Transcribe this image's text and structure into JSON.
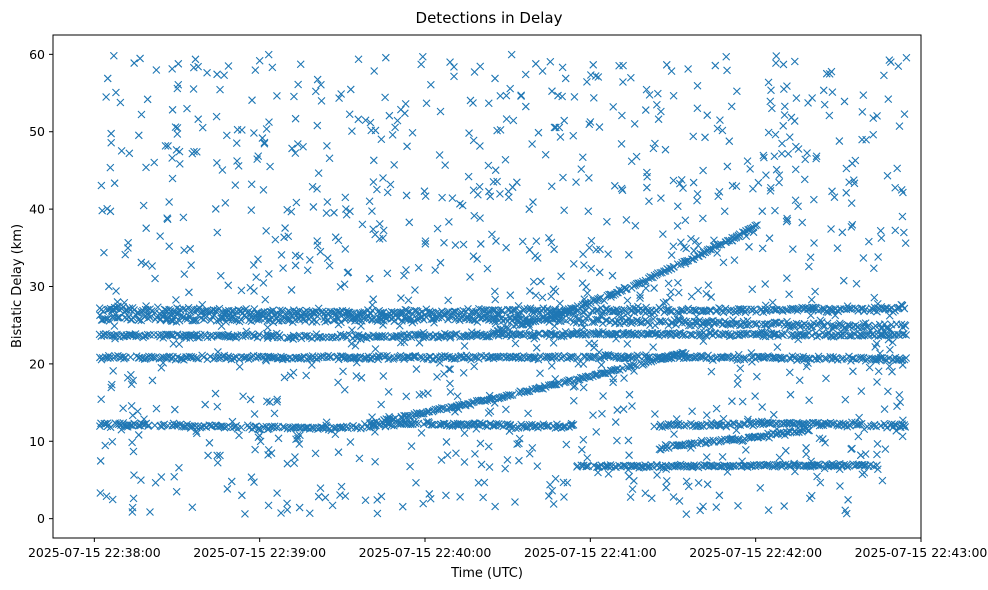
{
  "chart_data": {
    "type": "scatter",
    "title": "Detections in Delay",
    "xlabel": "Time (UTC)",
    "ylabel": "Bistatic Delay (km)",
    "x_start": "2025-07-15 22:37:45",
    "x_range_seconds": [
      0,
      315
    ],
    "x_ticks": [
      {
        "sec": 15,
        "label": "2025-07-15 22:38:00"
      },
      {
        "sec": 75,
        "label": "2025-07-15 22:39:00"
      },
      {
        "sec": 135,
        "label": "2025-07-15 22:40:00"
      },
      {
        "sec": 195,
        "label": "2025-07-15 22:41:00"
      },
      {
        "sec": 255,
        "label": "2025-07-15 22:42:00"
      },
      {
        "sec": 315,
        "label": "2025-07-15 22:43:00"
      }
    ],
    "ylim": [
      -2.5,
      62.5
    ],
    "y_ticks": [
      0,
      10,
      20,
      30,
      40,
      50,
      60
    ],
    "marker": "x",
    "color": "#1f77b4",
    "grid": false,
    "data_span_seconds": [
      17,
      310
    ],
    "tracks": [
      {
        "points": [
          [
            17,
            27.0
          ],
          [
            100,
            26.6
          ],
          [
            170,
            26.8
          ],
          [
            240,
            26.9
          ],
          [
            310,
            27.2
          ]
        ],
        "spread": 0.4
      },
      {
        "points": [
          [
            17,
            26.0
          ],
          [
            90,
            25.8
          ],
          [
            150,
            25.9
          ],
          [
            200,
            25.6
          ],
          [
            250,
            25.2
          ],
          [
            310,
            24.8
          ]
        ],
        "spread": 0.5
      },
      {
        "points": [
          [
            17,
            12.2
          ],
          [
            60,
            11.9
          ],
          [
            100,
            11.7
          ],
          [
            130,
            12.3
          ],
          [
            170,
            12.0
          ],
          [
            190,
            11.9
          ]
        ],
        "spread": 0.3
      },
      {
        "points": [
          [
            115,
            12.3
          ],
          [
            160,
            15.5
          ],
          [
            200,
            18.8
          ],
          [
            230,
            21.5
          ]
        ],
        "spread": 0.2
      },
      {
        "points": [
          [
            160,
            24.2
          ],
          [
            180,
            26.0
          ],
          [
            210,
            30.0
          ],
          [
            240,
            35.0
          ],
          [
            256,
            38.0
          ]
        ],
        "spread": 0.2
      },
      {
        "points": [
          [
            220,
            9.2
          ],
          [
            255,
            10.5
          ],
          [
            275,
            11.5
          ]
        ],
        "spread": 0.3
      },
      {
        "points": [
          [
            220,
            12.0
          ],
          [
            260,
            12.3
          ],
          [
            310,
            12.0
          ]
        ],
        "spread": 0.3
      },
      {
        "points": [
          [
            17,
            20.8
          ],
          [
            120,
            20.8
          ],
          [
            230,
            20.9
          ],
          [
            310,
            20.6
          ]
        ],
        "spread": 0.3
      },
      {
        "points": [
          [
            17,
            23.7
          ],
          [
            110,
            23.5
          ],
          [
            200,
            23.9
          ],
          [
            310,
            23.7
          ]
        ],
        "spread": 0.3
      },
      {
        "points": [
          [
            190,
            6.8
          ],
          [
            240,
            6.8
          ],
          [
            300,
            6.9
          ]
        ],
        "spread": 0.2
      }
    ]
  }
}
